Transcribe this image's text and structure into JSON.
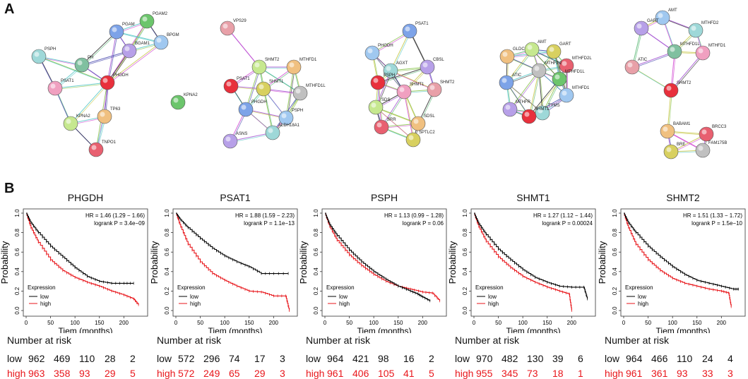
{
  "panel_letters": {
    "a": "A",
    "b": "B"
  },
  "networks": [
    {
      "nodes": [
        "PGAM2",
        "PGAM",
        "BPGM",
        "BGAM1",
        "PSPH",
        "PH",
        "PSAT1",
        "PHGDH",
        "KPNA2",
        "TP63",
        "TNPO1"
      ]
    },
    {
      "nodes": [
        "VPS29",
        "SHMT2",
        "MTHFD1",
        "PSAT1",
        "SHMT1",
        "MTHFD1L",
        "KPNA2",
        "PHGDH",
        "PSPH",
        "ASNS",
        "ALDH18A1"
      ]
    },
    {
      "nodes": [
        "PSAT1",
        "PHGDH",
        "CBSL",
        "AGXT",
        "PSPH",
        "SHMT1",
        "SHMT2",
        "SDS",
        "SDSL",
        "SRR",
        "SPTLC2"
      ]
    },
    {
      "nodes": [
        "AMT",
        "GLDC",
        "MTHFD2L",
        "GART",
        "MTHFD2",
        "MTHFD1L",
        "ATIC",
        "MTHFD1",
        "MTHFR",
        "TYMS",
        "SHMT1"
      ]
    },
    {
      "nodes": [
        "AMT",
        "GART",
        "MTHFD2",
        "MTHFD1L",
        "MTHFD1",
        "ATIC",
        "SHMT2",
        "BABAM1",
        "BRCC3",
        "BRE",
        "FAM175B"
      ]
    }
  ],
  "km_common": {
    "ylabel": "Probability",
    "xlabel": "Tiem (months)",
    "yticks": [
      "0.0",
      "0.2",
      "0.4",
      "0.6",
      "0.8",
      "1.0"
    ],
    "xticks": [
      "0",
      "50",
      "100",
      "150",
      "200"
    ],
    "legend_title": "Expression",
    "legend_low": "low",
    "legend_high": "high",
    "risk_header": "Number at risk",
    "low_label": "low",
    "high_label": "high",
    "colors": {
      "low": "#000000",
      "high": "#e8161b"
    }
  },
  "chart_data": [
    {
      "type": "line",
      "title": "PHGDH",
      "hr": "HR = 1.46 (1.29 − 1.66)",
      "logrank": "logrank P = 3.4e−09",
      "xlim": [
        0,
        240
      ],
      "ylim": [
        0,
        1
      ],
      "series": [
        {
          "name": "low",
          "x": [
            0,
            10,
            25,
            50,
            75,
            100,
            125,
            150,
            175,
            200,
            220
          ],
          "y": [
            1,
            0.9,
            0.8,
            0.66,
            0.55,
            0.44,
            0.35,
            0.3,
            0.28,
            0.28,
            0.28
          ]
        },
        {
          "name": "high",
          "x": [
            0,
            10,
            25,
            50,
            75,
            100,
            125,
            150,
            175,
            200,
            220,
            230
          ],
          "y": [
            1,
            0.85,
            0.7,
            0.52,
            0.41,
            0.34,
            0.29,
            0.25,
            0.2,
            0.16,
            0.12,
            0.06
          ]
        }
      ],
      "risk_low": [
        "962",
        "469",
        "110",
        "28",
        "2"
      ],
      "risk_high": [
        "963",
        "358",
        "93",
        "29",
        "5"
      ]
    },
    {
      "type": "line",
      "title": "PSAT1",
      "hr": "HR = 1.88 (1.59 − 2.23)",
      "logrank": "logrank P = 1.1e−13",
      "xlim": [
        0,
        240
      ],
      "ylim": [
        0,
        1
      ],
      "series": [
        {
          "name": "low",
          "x": [
            0,
            10,
            25,
            50,
            75,
            100,
            125,
            150,
            175,
            200,
            230
          ],
          "y": [
            1,
            0.93,
            0.85,
            0.74,
            0.64,
            0.56,
            0.5,
            0.45,
            0.38,
            0.38,
            0.38
          ]
        },
        {
          "name": "high",
          "x": [
            0,
            10,
            25,
            50,
            75,
            100,
            125,
            150,
            175,
            200,
            225,
            232
          ],
          "y": [
            1,
            0.86,
            0.68,
            0.5,
            0.38,
            0.31,
            0.25,
            0.2,
            0.19,
            0.15,
            0.15,
            0.0
          ]
        }
      ],
      "risk_low": [
        "572",
        "296",
        "74",
        "17",
        "3"
      ],
      "risk_high": [
        "572",
        "249",
        "65",
        "29",
        "3"
      ]
    },
    {
      "type": "line",
      "title": "PSPH",
      "hr": "HR = 1.13 (0.99 − 1.28)",
      "logrank": "logrank P = 0.06",
      "xlim": [
        0,
        240
      ],
      "ylim": [
        0,
        1
      ],
      "series": [
        {
          "name": "low",
          "x": [
            0,
            10,
            25,
            50,
            75,
            100,
            125,
            150,
            175,
            190,
            200,
            215
          ],
          "y": [
            1,
            0.88,
            0.77,
            0.62,
            0.5,
            0.4,
            0.32,
            0.25,
            0.2,
            0.17,
            0.14,
            0.1
          ]
        },
        {
          "name": "high",
          "x": [
            0,
            10,
            25,
            50,
            75,
            100,
            125,
            150,
            175,
            200,
            220,
            235
          ],
          "y": [
            1,
            0.86,
            0.72,
            0.57,
            0.46,
            0.37,
            0.3,
            0.25,
            0.22,
            0.19,
            0.18,
            0.1
          ]
        }
      ],
      "risk_low": [
        "964",
        "421",
        "98",
        "16",
        "2"
      ],
      "risk_high": [
        "961",
        "406",
        "105",
        "41",
        "5"
      ]
    },
    {
      "type": "line",
      "title": "SHMT1",
      "hr": "HR = 1.27 (1.12 − 1.44)",
      "logrank": "logrank P = 0.00024",
      "xlim": [
        0,
        240
      ],
      "ylim": [
        0,
        1
      ],
      "series": [
        {
          "name": "low",
          "x": [
            0,
            10,
            25,
            50,
            75,
            100,
            125,
            150,
            175,
            200,
            225,
            232
          ],
          "y": [
            1,
            0.89,
            0.78,
            0.63,
            0.52,
            0.42,
            0.34,
            0.29,
            0.25,
            0.24,
            0.24,
            0.12
          ]
        },
        {
          "name": "high",
          "x": [
            0,
            10,
            25,
            50,
            75,
            100,
            125,
            150,
            175,
            195,
            200
          ],
          "y": [
            1,
            0.86,
            0.71,
            0.55,
            0.44,
            0.35,
            0.29,
            0.24,
            0.2,
            0.17,
            0.0
          ]
        }
      ],
      "risk_low": [
        "970",
        "482",
        "130",
        "39",
        "6"
      ],
      "risk_high": [
        "955",
        "345",
        "73",
        "18",
        "1"
      ]
    },
    {
      "type": "line",
      "title": "SHMT2",
      "hr": "HR = 1.51 (1.33 − 1.72)",
      "logrank": "logrank P = 1.5e−10",
      "xlim": [
        0,
        240
      ],
      "ylim": [
        0,
        1
      ],
      "series": [
        {
          "name": "low",
          "x": [
            0,
            10,
            25,
            50,
            75,
            100,
            125,
            150,
            175,
            200,
            225,
            235
          ],
          "y": [
            1,
            0.9,
            0.8,
            0.66,
            0.55,
            0.45,
            0.37,
            0.31,
            0.28,
            0.25,
            0.22,
            0.22
          ]
        },
        {
          "name": "high",
          "x": [
            0,
            10,
            25,
            50,
            75,
            100,
            125,
            150,
            175,
            200,
            215,
            220
          ],
          "y": [
            1,
            0.85,
            0.68,
            0.52,
            0.41,
            0.33,
            0.28,
            0.25,
            0.22,
            0.2,
            0.18,
            0.04
          ]
        }
      ],
      "risk_low": [
        "964",
        "466",
        "110",
        "24",
        "4"
      ],
      "risk_high": [
        "961",
        "361",
        "93",
        "33",
        "3"
      ]
    }
  ]
}
